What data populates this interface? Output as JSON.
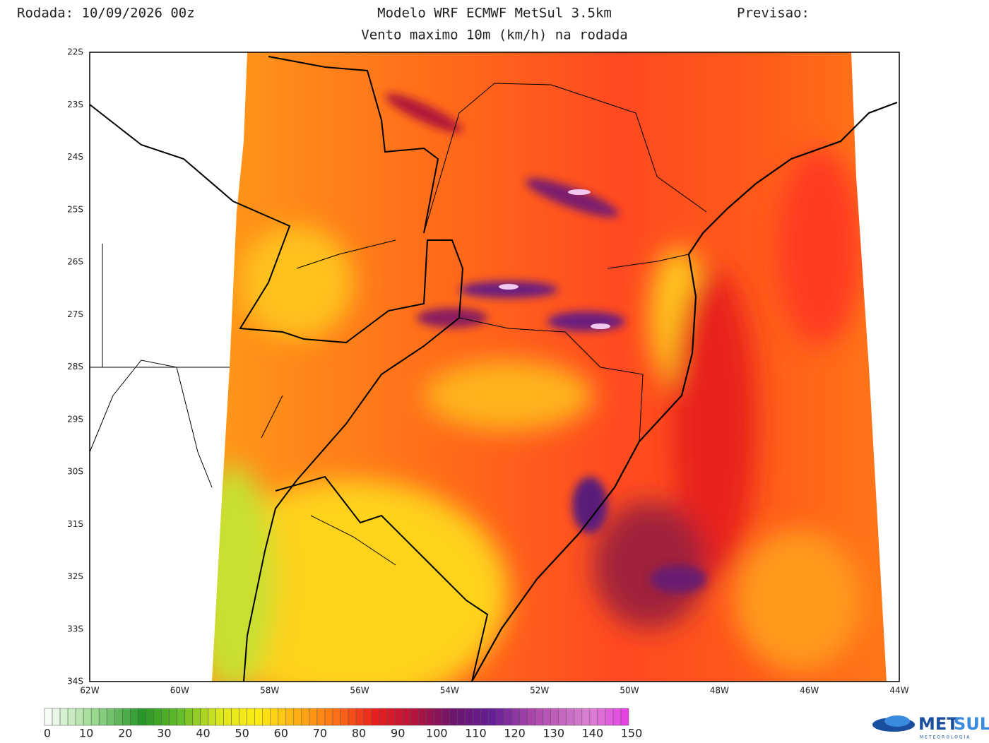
{
  "header": {
    "run": "Rodada: 10/09/2026 00z",
    "model": "Modelo WRF ECMWF MetSul 3.5km",
    "forecast": "Previsao:",
    "subtitle": "Vento maximo 10m (km/h) na rodada"
  },
  "map": {
    "lat_labels": [
      "22S",
      "23S",
      "24S",
      "25S",
      "26S",
      "27S",
      "28S",
      "29S",
      "30S",
      "31S",
      "32S",
      "33S",
      "34S"
    ],
    "lon_labels": [
      "62W",
      "60W",
      "58W",
      "56W",
      "54W",
      "52W",
      "50W",
      "48W",
      "46W",
      "44W"
    ]
  },
  "colorbar": {
    "labels": [
      0,
      10,
      20,
      30,
      40,
      50,
      60,
      70,
      80,
      90,
      100,
      110,
      120,
      130,
      140,
      150
    ]
  },
  "logo": {
    "brand_a": "MET",
    "brand_b": "SUL",
    "subtext": "METEOROLOGIA"
  }
}
